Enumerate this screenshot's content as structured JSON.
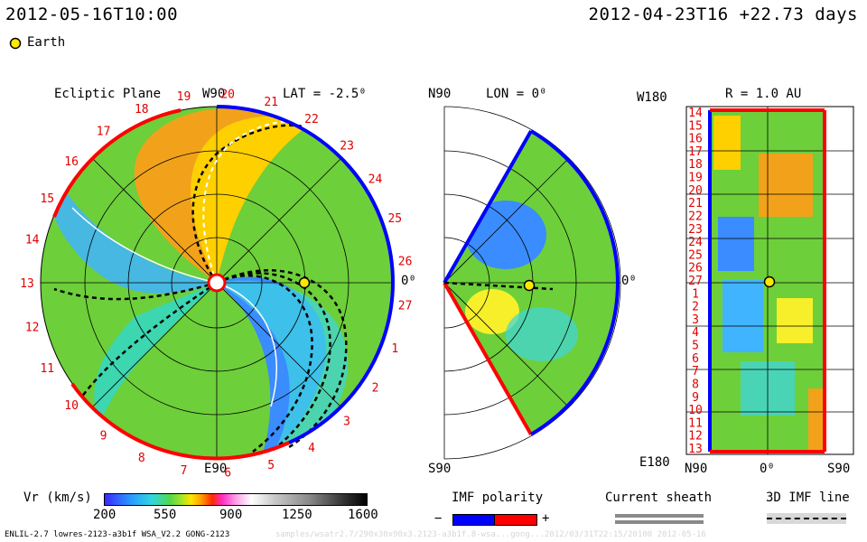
{
  "header": {
    "left_time": "2012-05-16T10:00",
    "right_time": "2012-04-23T16 +22.73 days"
  },
  "legend_earth": {
    "label": "Earth",
    "color": "#ffe800"
  },
  "panels": {
    "ecliptic": {
      "title": "Ecliptic Plane",
      "top_label": "W90",
      "lat_label": "LAT = -2.5⁰",
      "bottom_label": "E90",
      "right_label": "0⁰",
      "rotation_labels": [
        "19",
        "20",
        "21",
        "22",
        "23",
        "24",
        "25",
        "26",
        "27",
        "1",
        "2",
        "3",
        "4",
        "5",
        "6",
        "7",
        "8",
        "9",
        "10",
        "11",
        "12",
        "13",
        "14",
        "15",
        "16",
        "17",
        "18"
      ]
    },
    "meridional": {
      "top_label": "N90",
      "lon_label": "LON = 0⁰",
      "bottom_label": "S90",
      "right_label": "0⁰"
    },
    "radial": {
      "top_left_label": "W180",
      "r_label": "R = 1.0 AU",
      "bottom_left_label": "E180",
      "bottom_labels": [
        "N90",
        "0⁰",
        "S90"
      ],
      "rotation_labels": [
        "14",
        "15",
        "16",
        "17",
        "18",
        "19",
        "20",
        "21",
        "22",
        "23",
        "24",
        "25",
        "26",
        "27",
        "1",
        "2",
        "3",
        "4",
        "5",
        "6",
        "7",
        "8",
        "9",
        "10",
        "11",
        "12",
        "13"
      ]
    }
  },
  "colorbar": {
    "label": "Vr (km/s)",
    "ticks": [
      "200",
      "550",
      "900",
      "1250",
      "1600"
    ],
    "range": [
      200,
      1600
    ]
  },
  "imf_polarity": {
    "title": "IMF polarity",
    "minus": "−",
    "plus": "+",
    "minus_color": "#0000ff",
    "plus_color": "#ff0000"
  },
  "current_sheath": {
    "title": "Current sheath"
  },
  "imf_line": {
    "title": "3D IMF line"
  },
  "footer": {
    "left": "ENLIL-2.7 lowres-2123-a3b1f WSA_V2.2 GONG-2123",
    "faint": "samples/wsatr2.7/290x30x90x3.2123-a3b1f.8-wsa...gong...2012/03/31T22:15/20100   2012-05-16"
  },
  "chart_data": {
    "type": "heatmap",
    "title": "",
    "quantity": "Vr (km/s)",
    "color_scale": [
      200,
      1600
    ],
    "color_ticks": [
      200,
      550,
      900,
      1250,
      1600
    ],
    "earth_position": {
      "r_au": 1.0,
      "lon_deg": 0,
      "lat_deg": -2.5
    },
    "panels": [
      "Ecliptic Plane",
      "LON = 0⁰",
      "R = 1.0 AU"
    ]
  }
}
